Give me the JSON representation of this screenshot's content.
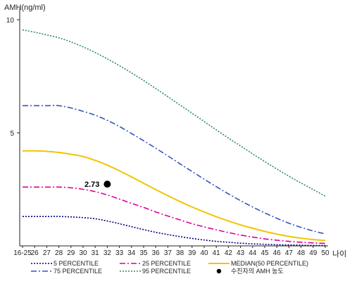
{
  "chart_data": {
    "type": "line",
    "ylabel": "AMH(ng/ml)",
    "xlabel": "나이",
    "ylim": [
      0,
      10.5
    ],
    "y_ticks": [
      5,
      10
    ],
    "categories": [
      "16-25",
      "26",
      "27",
      "28",
      "29",
      "30",
      "31",
      "32",
      "33",
      "34",
      "35",
      "36",
      "37",
      "38",
      "39",
      "40",
      "41",
      "42",
      "43",
      "44",
      "45",
      "46",
      "47",
      "48",
      "49",
      "50"
    ],
    "series": [
      {
        "name": "5 PERCENTILE",
        "color": "#000080",
        "dash": "2,2",
        "values": [
          1.3,
          1.3,
          1.3,
          1.3,
          1.28,
          1.25,
          1.2,
          1.1,
          0.98,
          0.85,
          0.72,
          0.6,
          0.5,
          0.41,
          0.33,
          0.26,
          0.2,
          0.16,
          0.12,
          0.09,
          0.07,
          0.05,
          0.04,
          0.03,
          0.02,
          0.02
        ]
      },
      {
        "name": "25 PERCENTILE",
        "color": "#dd0099",
        "dash": "8,3,2,3",
        "values": [
          2.6,
          2.6,
          2.6,
          2.6,
          2.57,
          2.5,
          2.4,
          2.25,
          2.07,
          1.88,
          1.7,
          1.5,
          1.32,
          1.15,
          0.98,
          0.84,
          0.71,
          0.59,
          0.48,
          0.39,
          0.31,
          0.25,
          0.2,
          0.16,
          0.13,
          0.11
        ]
      },
      {
        "name": "MEDIAN(50 PERCENTILE)",
        "color": "#f2c400",
        "dash": "",
        "values": [
          4.2,
          4.2,
          4.18,
          4.13,
          4.05,
          3.95,
          3.78,
          3.57,
          3.32,
          3.05,
          2.77,
          2.49,
          2.22,
          1.96,
          1.72,
          1.5,
          1.29,
          1.1,
          0.93,
          0.78,
          0.64,
          0.52,
          0.42,
          0.34,
          0.28,
          0.24
        ]
      },
      {
        "name": "75 PERCENTILE",
        "color": "#3355bb",
        "dash": "8,3,2,3",
        "values": [
          6.2,
          6.2,
          6.2,
          6.2,
          6.1,
          5.95,
          5.78,
          5.55,
          5.28,
          4.97,
          4.65,
          4.32,
          3.98,
          3.63,
          3.29,
          2.95,
          2.62,
          2.3,
          2.0,
          1.72,
          1.46,
          1.22,
          1.0,
          0.82,
          0.66,
          0.53
        ]
      },
      {
        "name": "95 PERCENTILE",
        "color": "#2e8b57",
        "dash": "2,2",
        "values": [
          9.55,
          9.45,
          9.33,
          9.2,
          9.02,
          8.8,
          8.55,
          8.27,
          7.97,
          7.65,
          7.31,
          6.96,
          6.6,
          6.23,
          5.87,
          5.5,
          5.13,
          4.77,
          4.42,
          4.07,
          3.73,
          3.4,
          3.08,
          2.78,
          2.49,
          2.2
        ]
      }
    ],
    "point": {
      "name": "수진자의 AMH 농도",
      "x": "32",
      "y": 2.73,
      "label": "2.73",
      "color": "#000000"
    },
    "legend": {
      "placement": "bottom",
      "items": [
        {
          "label": "5 PERCENTILE",
          "series": 0
        },
        {
          "label": "25 PERCENTILE",
          "series": 1
        },
        {
          "label": "MEDIAN(50 PERCENTILE)",
          "series": 2
        },
        {
          "label": "75 PERCENTILE",
          "series": 3
        },
        {
          "label": "95 PERCENTILE",
          "series": 4
        },
        {
          "label": "수진자의 AMH 농도",
          "point": true
        }
      ]
    }
  }
}
